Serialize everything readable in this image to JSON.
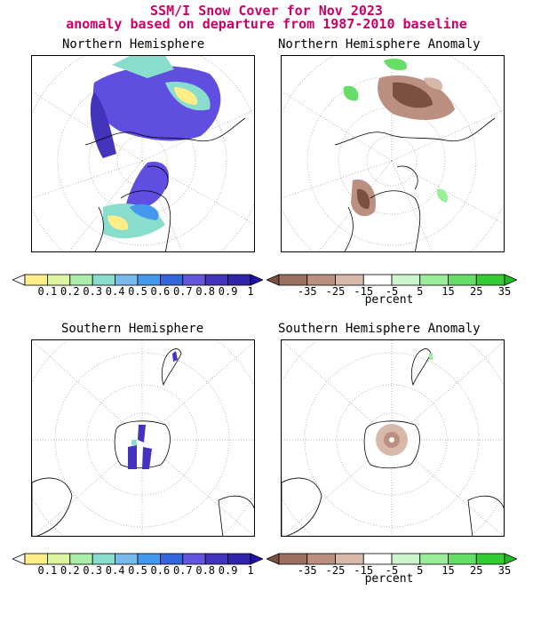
{
  "header": {
    "title_line1": "SSM/I Snow Cover for Nov 2023",
    "title_line2": "anomaly based on departure from 1987-2010 baseline",
    "title_color": "#cc0066"
  },
  "panels": {
    "nh": {
      "title": "Northern Hemisphere"
    },
    "nh_anom": {
      "title": "Northern Hemisphere Anomaly"
    },
    "sh": {
      "title": "Southern Hemisphere"
    },
    "sh_anom": {
      "title": "Southern Hemisphere Anomaly"
    }
  },
  "colorbars": {
    "cover": {
      "ticks": [
        "0.1",
        "0.2",
        "0.3",
        "0.4",
        "0.5",
        "0.6",
        "0.7",
        "0.8",
        "0.9",
        "1"
      ],
      "colors": [
        "#ffffff",
        "#ffee88",
        "#ddf5a0",
        "#aaeeaa",
        "#88ddcc",
        "#77bbee",
        "#4499ee",
        "#3366dd",
        "#6655dd",
        "#4433bb",
        "#3322aa",
        "#2211aa"
      ]
    },
    "anomaly": {
      "ticks": [
        "-35",
        "-25",
        "-15",
        "-5",
        "5",
        "15",
        "25",
        "35"
      ],
      "unit": "percent",
      "colors": [
        "#7a5040",
        "#9c7060",
        "#bb9080",
        "#d8b8a8",
        "#ffffff",
        "#ccf5cc",
        "#99ee99",
        "#66dd66",
        "#33cc33",
        "#22bb22"
      ]
    }
  }
}
